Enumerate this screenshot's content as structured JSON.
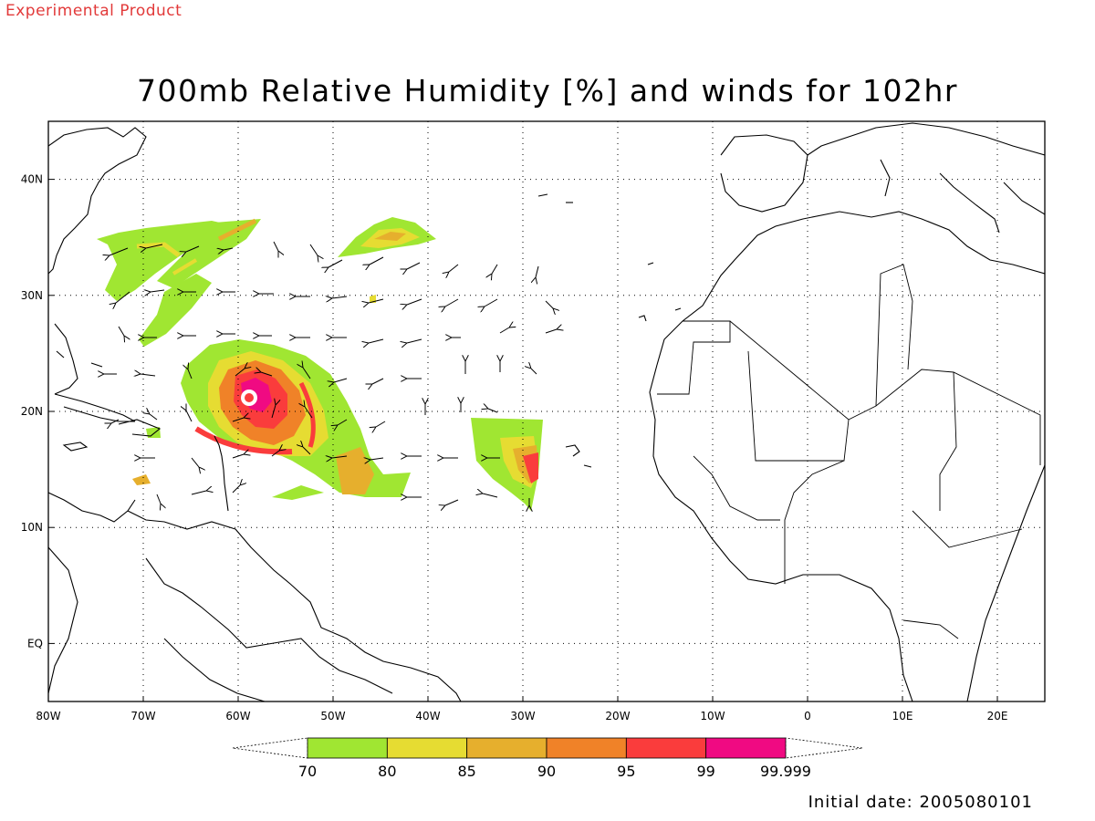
{
  "header": {
    "experimental_label": "Experimental Product",
    "title": "700mb Relative Humidity [%] and winds for 102hr",
    "initial_date": "Initial date: 2005080101"
  },
  "map": {
    "lon_range": [
      -80,
      25
    ],
    "lat_range": [
      -5,
      45
    ],
    "lon_ticks": [
      {
        "lon": -80,
        "label": "80W"
      },
      {
        "lon": -70,
        "label": "70W"
      },
      {
        "lon": -60,
        "label": "60W"
      },
      {
        "lon": -50,
        "label": "50W"
      },
      {
        "lon": -40,
        "label": "40W"
      },
      {
        "lon": -30,
        "label": "30W"
      },
      {
        "lon": -20,
        "label": "20W"
      },
      {
        "lon": -10,
        "label": "10W"
      },
      {
        "lon": 0,
        "label": "0"
      },
      {
        "lon": 10,
        "label": "10E"
      },
      {
        "lon": 20,
        "label": "20E"
      }
    ],
    "lat_ticks": [
      {
        "lat": 40,
        "label": "40N"
      },
      {
        "lat": 30,
        "label": "30N"
      },
      {
        "lat": 20,
        "label": "20N"
      },
      {
        "lat": 10,
        "label": "10N"
      },
      {
        "lat": 0,
        "label": "EQ"
      }
    ],
    "grid_lines": "dotted",
    "storm_center": {
      "lon": -60,
      "lat": 21
    }
  },
  "colorbar": {
    "segments": [
      {
        "color": "#a0e632"
      },
      {
        "color": "#e6dc32"
      },
      {
        "color": "#e6af2d"
      },
      {
        "color": "#f08228"
      },
      {
        "color": "#fa3c3c"
      },
      {
        "color": "#f00a82"
      }
    ],
    "labels": [
      "70",
      "80",
      "85",
      "90",
      "95",
      "99",
      "99.999"
    ]
  }
}
